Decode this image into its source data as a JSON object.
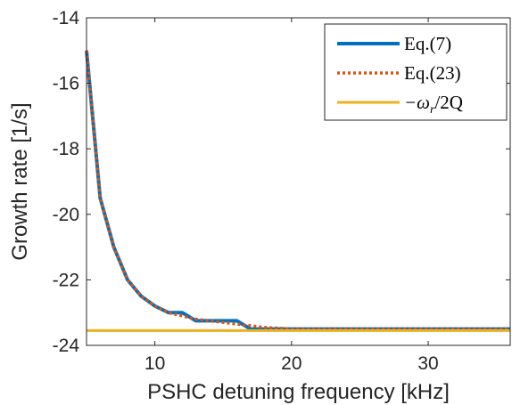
{
  "chart_data": {
    "type": "line",
    "title": "",
    "xlabel": "PSHC detuning frequency [kHz]",
    "ylabel": "Growth rate [1/s]",
    "xlim": [
      5,
      36
    ],
    "ylim": [
      -24,
      -14
    ],
    "xticks": [
      10,
      20,
      30
    ],
    "yticks": [
      -24,
      -22,
      -20,
      -18,
      -16,
      -14
    ],
    "xtick_labels": [
      "10",
      "20",
      "30"
    ],
    "ytick_labels": [
      "-24",
      "-22",
      "-20",
      "-18",
      "-16",
      "-14"
    ],
    "grid": false,
    "legend_position": "top-right",
    "series": [
      {
        "name": "Eq.(7)",
        "color": "#0072BD",
        "style": "solid",
        "x": [
          5,
          6,
          7,
          8,
          9,
          10,
          11,
          12,
          13,
          14,
          15,
          16,
          17,
          18,
          20,
          25,
          30,
          36
        ],
        "y": [
          -15.0,
          -19.5,
          -21.0,
          -22.0,
          -22.5,
          -22.8,
          -23.0,
          -23.0,
          -23.25,
          -23.25,
          -23.25,
          -23.25,
          -23.5,
          -23.5,
          -23.5,
          -23.5,
          -23.5,
          -23.5
        ]
      },
      {
        "name": "Eq.(23)",
        "color": "#D95319",
        "style": "dotted",
        "x": [
          5,
          6,
          7,
          8,
          9,
          10,
          11,
          12,
          13,
          14,
          15,
          16,
          17,
          18,
          20,
          25,
          30,
          36
        ],
        "y": [
          -15.0,
          -19.5,
          -21.0,
          -22.0,
          -22.5,
          -22.8,
          -23.0,
          -23.1,
          -23.2,
          -23.25,
          -23.3,
          -23.35,
          -23.4,
          -23.45,
          -23.5,
          -23.5,
          -23.5,
          -23.5
        ]
      },
      {
        "name": "-ω_r/2Q",
        "color": "#EDB120",
        "style": "solid",
        "x": [
          5,
          36
        ],
        "y": [
          -23.55,
          -23.55
        ]
      }
    ],
    "legend": {
      "entries": [
        "Eq.(7)",
        "Eq.(23)",
        "−ω",
        "r",
        "/2Q"
      ]
    }
  }
}
